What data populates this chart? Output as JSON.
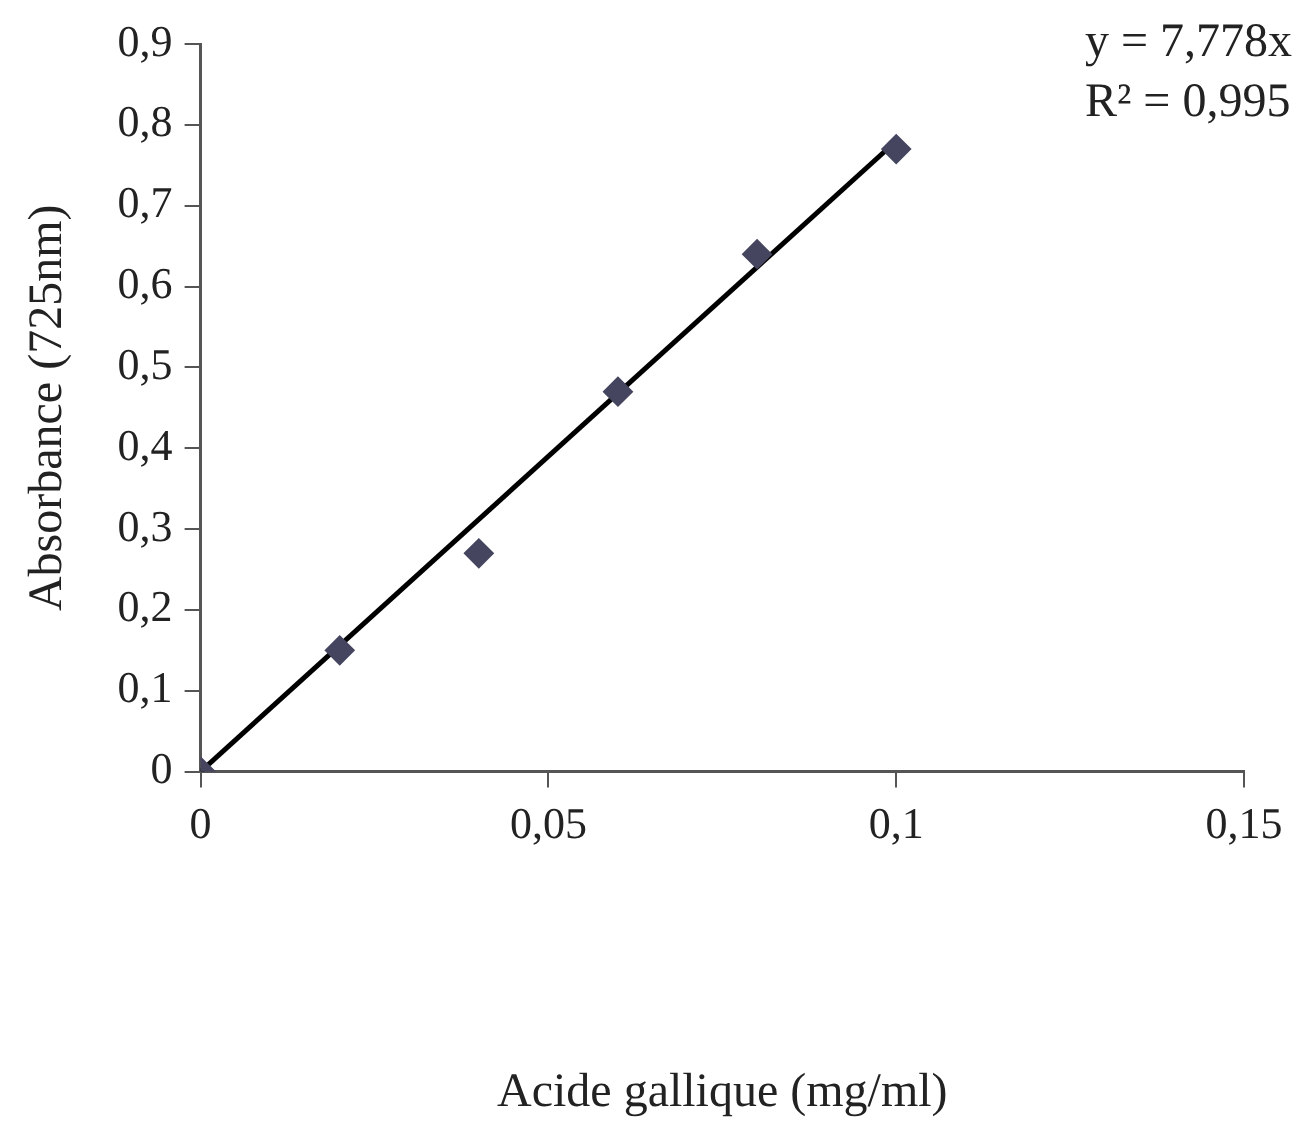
{
  "chart_data": {
    "type": "scatter",
    "xlabel": "Acide gallique (mg/ml)",
    "ylabel": "Absorbance (725nm)",
    "xlim": [
      0,
      0.15
    ],
    "xticks": [
      0,
      {
        "value": 0.05,
        "label": "0,05"
      },
      {
        "value": 0.1,
        "label": "0,1"
      },
      {
        "value": 0.15,
        "label": "0,15"
      }
    ],
    "ylim": [
      0,
      0.9
    ],
    "yticks": [
      0,
      {
        "value": 0.1,
        "label": "0,1"
      },
      {
        "value": 0.2,
        "label": "0,2"
      },
      {
        "value": 0.3,
        "label": "0,3"
      },
      {
        "value": 0.4,
        "label": "0,4"
      },
      {
        "value": 0.5,
        "label": "0,5"
      },
      {
        "value": 0.6,
        "label": "0,6"
      },
      {
        "value": 0.7,
        "label": "0,7"
      },
      {
        "value": 0.8,
        "label": "0,8"
      },
      {
        "value": 0.9,
        "label": "0,9"
      }
    ],
    "x": [
      0,
      0.02,
      0.04,
      0.06,
      0.08,
      0.1
    ],
    "series": [
      {
        "type": "scatter",
        "color": "#45455f",
        "values": [
          0,
          0.15,
          0.27,
          0.47,
          0.64,
          0.77
        ]
      },
      {
        "type": "line",
        "color": "#000000",
        "x": [
          0,
          0.1
        ],
        "values": [
          0,
          0.78
        ],
        "marker": "none"
      }
    ],
    "marker": "diamond",
    "grid": false,
    "legend": false,
    "annotations": [
      "y = 7,778x",
      "R² = 0,995"
    ]
  }
}
